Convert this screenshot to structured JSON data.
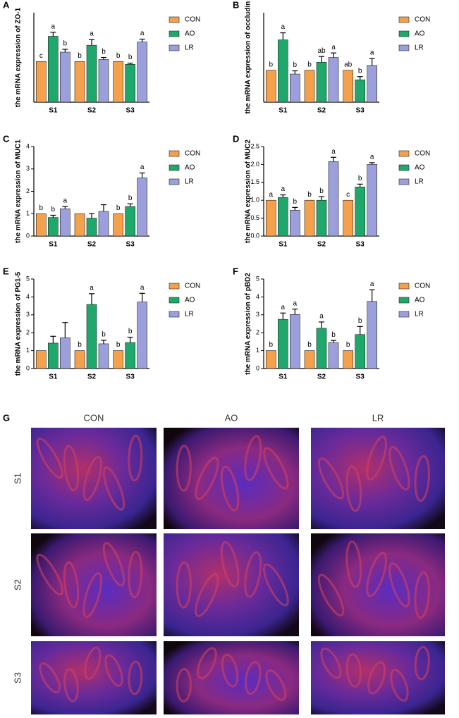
{
  "chart_data": [
    {
      "type": "bar",
      "panel": "A",
      "ylabel": "the mRNA expression of ZO-1",
      "categories": [
        "S1",
        "S2",
        "S3"
      ],
      "ylim": [
        0,
        2.2
      ],
      "series": [
        {
          "name": "CON",
          "color": "#f5a04a",
          "values": [
            1,
            1,
            1
          ],
          "errors": [
            0,
            0,
            0
          ],
          "annotations": [
            "c",
            "b",
            "b"
          ]
        },
        {
          "name": "AO",
          "color": "#1fa86b",
          "values": [
            1.62,
            1.4,
            0.93
          ],
          "errors": [
            0.1,
            0.14,
            0.03
          ],
          "annotations": [
            "a",
            "a",
            "b"
          ]
        },
        {
          "name": "LR",
          "color": "#9b9fdc",
          "values": [
            1.23,
            1.05,
            1.48
          ],
          "errors": [
            0.07,
            0.05,
            0.07
          ],
          "annotations": [
            "b",
            "b",
            "a"
          ]
        }
      ]
    },
    {
      "type": "bar",
      "panel": "B",
      "ylabel": "the mRNA expression of occludin",
      "categories": [
        "S1",
        "S2",
        "S3"
      ],
      "ylim": [
        0,
        2.8
      ],
      "series": [
        {
          "name": "CON",
          "color": "#f5a04a",
          "values": [
            1,
            1,
            1
          ],
          "errors": [
            0,
            0,
            0
          ],
          "annotations": [
            "b",
            "b",
            "ab"
          ]
        },
        {
          "name": "AO",
          "color": "#1fa86b",
          "values": [
            1.95,
            1.25,
            0.7
          ],
          "errors": [
            0.22,
            0.18,
            0.1
          ],
          "annotations": [
            "a",
            "ab",
            "b"
          ]
        },
        {
          "name": "LR",
          "color": "#9b9fdc",
          "values": [
            0.88,
            1.4,
            1.15
          ],
          "errors": [
            0.1,
            0.14,
            0.22
          ],
          "annotations": [
            "b",
            "a",
            "a"
          ]
        }
      ]
    },
    {
      "type": "bar",
      "panel": "C",
      "ylabel": "the mRNA expression of MUC1",
      "categories": [
        "S1",
        "S2",
        "S3"
      ],
      "ylim": [
        0,
        4
      ],
      "yticks": [
        0,
        1,
        2,
        3,
        4
      ],
      "series": [
        {
          "name": "CON",
          "color": "#f5a04a",
          "values": [
            1,
            1,
            1
          ],
          "errors": [
            0,
            0,
            0
          ],
          "annotations": [
            "b",
            null,
            "b"
          ]
        },
        {
          "name": "AO",
          "color": "#1fa86b",
          "values": [
            0.83,
            0.8,
            1.32
          ],
          "errors": [
            0.1,
            0.2,
            0.12
          ],
          "annotations": [
            "b",
            null,
            "b"
          ]
        },
        {
          "name": "LR",
          "color": "#9b9fdc",
          "values": [
            1.22,
            1.1,
            2.6
          ],
          "errors": [
            0.1,
            0.3,
            0.22
          ],
          "annotations": [
            "a",
            null,
            "a"
          ]
        }
      ]
    },
    {
      "type": "bar",
      "panel": "D",
      "ylabel": "the mRNA expression of MUC2",
      "categories": [
        "S1",
        "S2",
        "S3"
      ],
      "ylim": [
        0,
        2.5
      ],
      "yticks": [
        {
          "value": 0,
          "label": "0.0"
        },
        0.5,
        {
          "value": 1,
          "label": "1.0"
        },
        1.5,
        {
          "value": 2,
          "label": "2.0"
        },
        2.5
      ],
      "series": [
        {
          "name": "CON",
          "color": "#f5a04a",
          "values": [
            1,
            1,
            1
          ],
          "errors": [
            0,
            0,
            0
          ],
          "annotations": [
            "a",
            "b",
            "c"
          ]
        },
        {
          "name": "AO",
          "color": "#1fa86b",
          "values": [
            1.08,
            1.0,
            1.37
          ],
          "errors": [
            0.07,
            0.1,
            0.08
          ],
          "annotations": [
            "a",
            "b",
            "b"
          ]
        },
        {
          "name": "LR",
          "color": "#9b9fdc",
          "values": [
            0.72,
            2.08,
            2.0
          ],
          "errors": [
            0.08,
            0.12,
            0.05
          ],
          "annotations": [
            "b",
            "a",
            "a"
          ]
        }
      ]
    },
    {
      "type": "bar",
      "panel": "E",
      "ylabel": "the mRNA expression of PG1-5",
      "categories": [
        "S1",
        "S2",
        "S3"
      ],
      "ylim": [
        0,
        5
      ],
      "yticks": [
        0,
        1,
        2,
        3,
        4,
        5
      ],
      "series": [
        {
          "name": "CON",
          "color": "#f5a04a",
          "values": [
            1,
            1,
            1
          ],
          "errors": [
            0,
            0,
            0
          ],
          "annotations": [
            null,
            "b",
            "b"
          ]
        },
        {
          "name": "AO",
          "color": "#1fa86b",
          "values": [
            1.42,
            3.58,
            1.45
          ],
          "errors": [
            0.38,
            0.6,
            0.3
          ],
          "annotations": [
            null,
            "a",
            "b"
          ]
        },
        {
          "name": "LR",
          "color": "#9b9fdc",
          "values": [
            1.72,
            1.38,
            3.72
          ],
          "errors": [
            0.85,
            0.2,
            0.48
          ],
          "annotations": [
            null,
            "b",
            "a"
          ]
        }
      ]
    },
    {
      "type": "bar",
      "panel": "F",
      "ylabel": "the mRNA expression of pBD2",
      "categories": [
        "S1",
        "S2",
        "S3"
      ],
      "ylim": [
        0,
        5
      ],
      "yticks": [
        0,
        1,
        2,
        3,
        4,
        5
      ],
      "series": [
        {
          "name": "CON",
          "color": "#f5a04a",
          "values": [
            1,
            1,
            1
          ],
          "errors": [
            0,
            0,
            0
          ],
          "annotations": [
            "b",
            "b",
            "b"
          ]
        },
        {
          "name": "AO",
          "color": "#1fa86b",
          "values": [
            2.75,
            2.25,
            1.9
          ],
          "errors": [
            0.35,
            0.35,
            0.45
          ],
          "annotations": [
            "a",
            "a",
            "b"
          ]
        },
        {
          "name": "LR",
          "color": "#9b9fdc",
          "values": [
            3.02,
            1.45,
            3.75
          ],
          "errors": [
            0.3,
            0.12,
            0.65
          ],
          "annotations": [
            "a",
            "b",
            "a"
          ]
        }
      ]
    }
  ],
  "image_panel": {
    "label": "G",
    "columns": [
      "CON",
      "AO",
      "LR"
    ],
    "rows": [
      "S1",
      "S2",
      "S3"
    ]
  }
}
